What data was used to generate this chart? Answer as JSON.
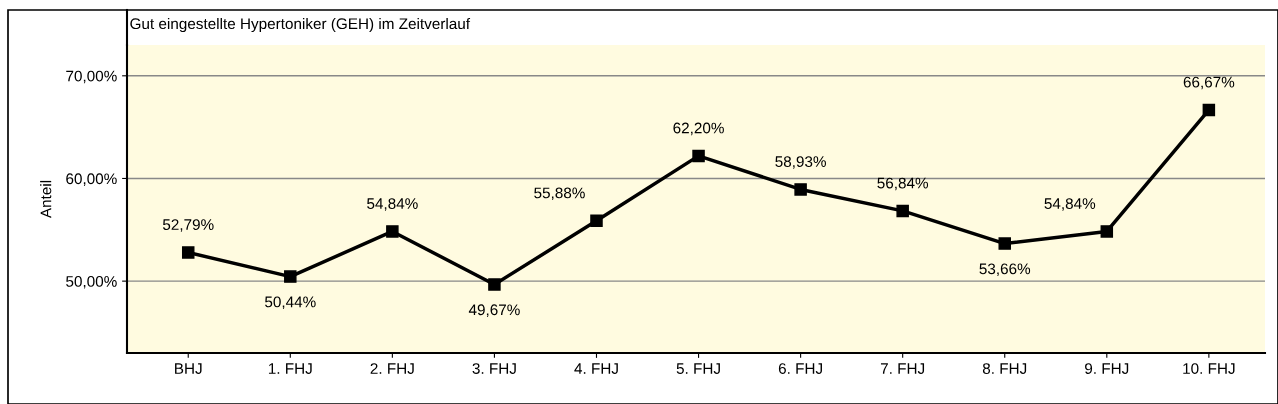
{
  "chart_data": {
    "type": "line",
    "title": "Gut eingestellte Hypertoniker (GEH) im Zeitverlauf",
    "ylabel": "Anteil",
    "categories": [
      "BHJ",
      "1. FHJ",
      "2. FHJ",
      "3. FHJ",
      "4. FHJ",
      "5. FHJ",
      "6. FHJ",
      "7. FHJ",
      "8. FHJ",
      "9. FHJ",
      "10. FHJ"
    ],
    "series": [
      {
        "color": "#000000",
        "values": [
          52.79,
          50.44,
          54.84,
          49.67,
          55.88,
          62.2,
          58.93,
          56.84,
          53.66,
          54.84,
          66.67
        ],
        "value_labels": [
          "52,79%",
          "50,44%",
          "54,84%",
          "49,67%",
          "55,88%",
          "62,20%",
          "58,93%",
          "56,84%",
          "53,66%",
          "54,84%",
          "66,67%"
        ]
      }
    ],
    "ylim": [
      43,
      73
    ],
    "yticks": [
      {
        "value": 50,
        "label": "50,00%"
      },
      {
        "value": 60,
        "label": "60,00%"
      },
      {
        "value": 70,
        "label": "70,00%"
      }
    ],
    "grid": "y",
    "marker": "square",
    "line_style": "solid",
    "legend": false
  }
}
